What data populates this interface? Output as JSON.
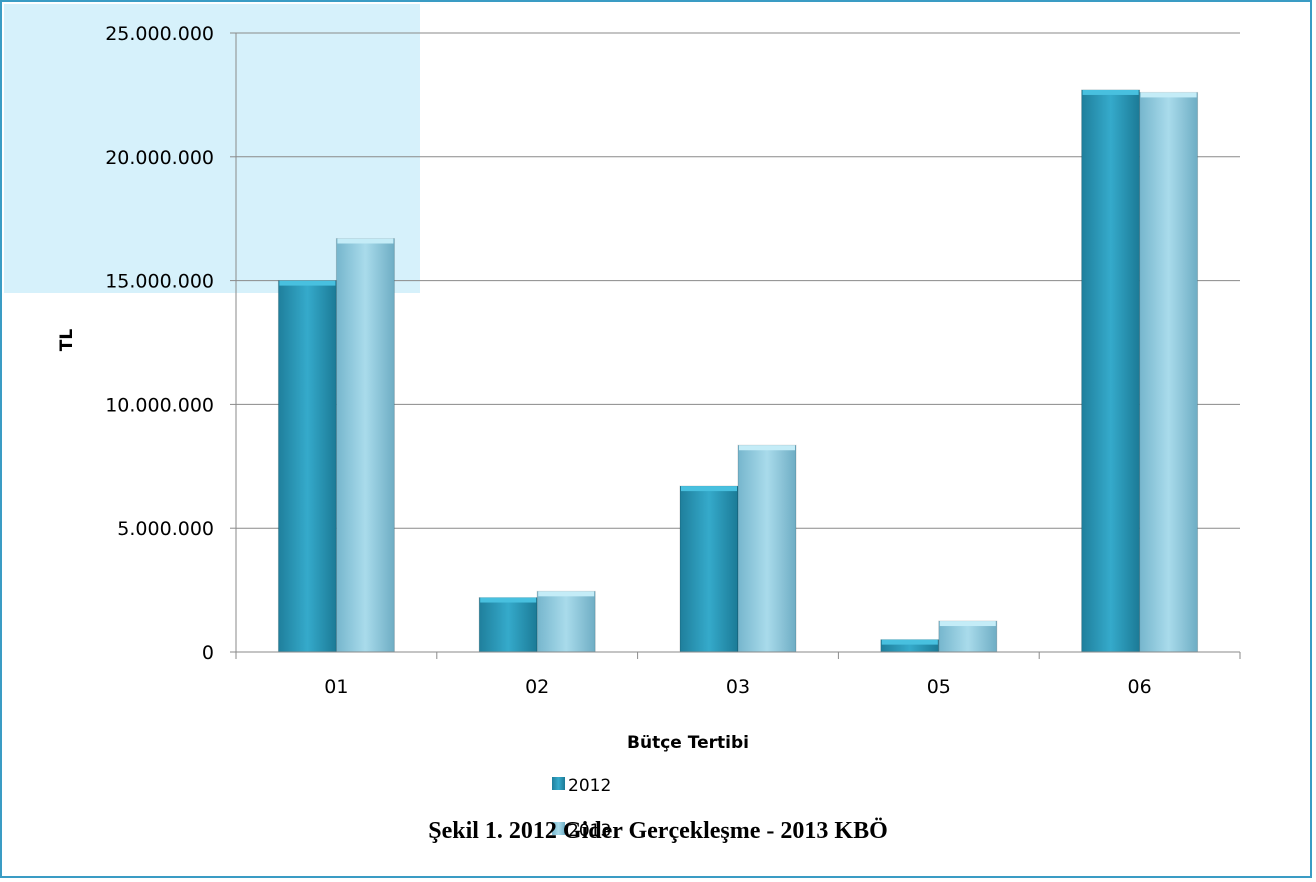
{
  "chart_data": {
    "type": "bar",
    "title": "",
    "xlabel": "Bütçe Tertibi",
    "ylabel": "TL",
    "categories": [
      "01",
      "02",
      "03",
      "05",
      "06"
    ],
    "series": [
      {
        "name": "2012",
        "values": [
          15000000,
          2200000,
          6700000,
          500000,
          22700000
        ],
        "color": "#2ea3c4"
      },
      {
        "name": "2013",
        "values": [
          16700000,
          2450000,
          8350000,
          1250000,
          22600000
        ],
        "color": "#8ccbe0"
      }
    ],
    "ylim": [
      0,
      25000000
    ],
    "yticks": [
      "0",
      "5.000.000",
      "10.000.000",
      "15.000.000",
      "20.000.000",
      "25.000.000"
    ],
    "grid": true,
    "legend_position": "bottom"
  },
  "caption": "Şekil 1. 2012 Gider Gerçekleşme - 2013 KBÖ"
}
